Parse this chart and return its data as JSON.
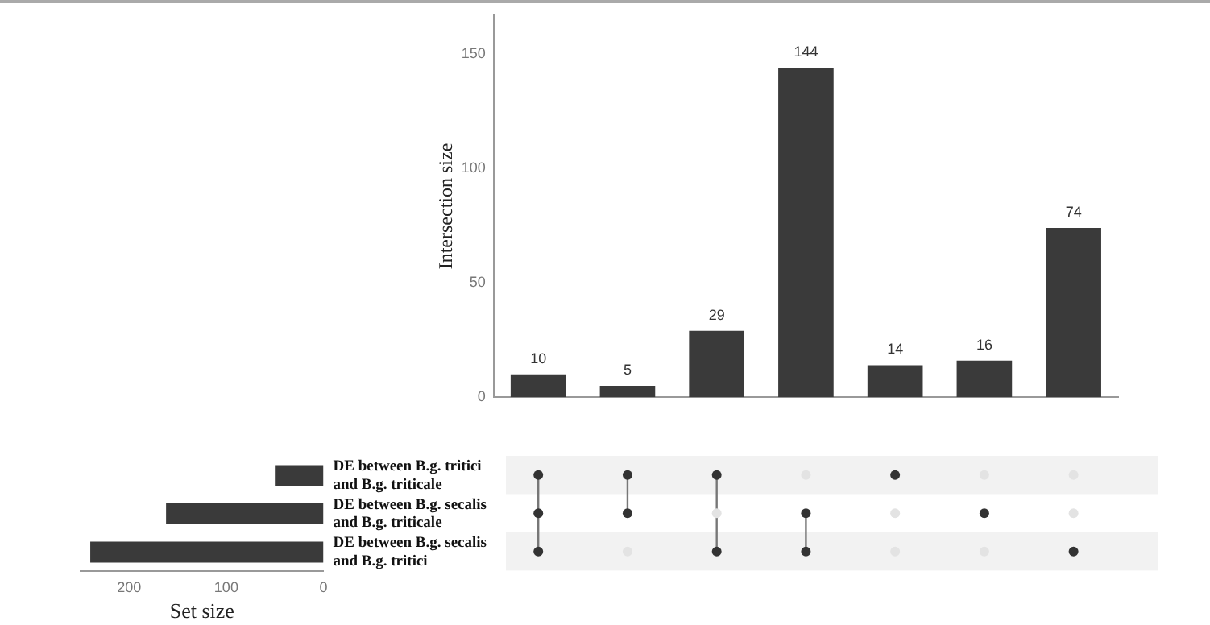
{
  "chart_data": [
    {
      "type": "bar",
      "ylabel": "Intersection size",
      "categories": [
        null,
        null,
        null,
        null,
        null,
        null,
        null
      ],
      "values": [
        10,
        5,
        29,
        144,
        14,
        16,
        74
      ],
      "color": "#3a3a3a",
      "ylim": [
        0,
        167
      ],
      "yticks": [
        0,
        50,
        100,
        150
      ],
      "data_labels": true,
      "grid": false,
      "legend": false
    },
    {
      "type": "bar",
      "orientation": "horizontal",
      "xlabel": "Set size",
      "categories": [
        "DE between B.g. tritici and B.g. triticale",
        "DE between B.g. secalis and B.g. triticale",
        "DE between B.g. secalis and B.g. tritici"
      ],
      "values": [
        50,
        162,
        240
      ],
      "color": "#3a3a3a",
      "xlim": [
        250,
        0
      ],
      "xticks": [
        200,
        100,
        0
      ],
      "grid": false,
      "legend": false
    }
  ]
}
